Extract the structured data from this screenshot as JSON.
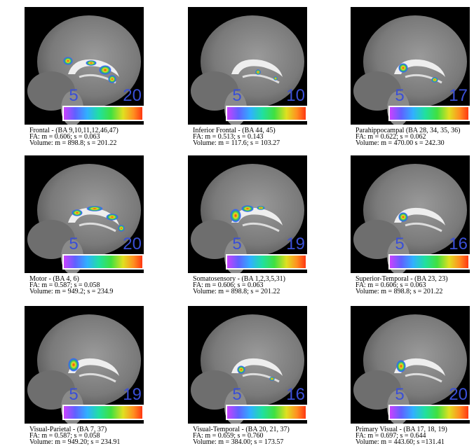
{
  "panels": [
    {
      "min_label": "5",
      "max_label": "20",
      "caption": [
        "Frontal - (BA 9,10,11,12,46,47)",
        "FA: m = 0.606; s = 0.063",
        "Volume: m = 898.8; s = 201.22"
      ]
    },
    {
      "min_label": "5",
      "max_label": "10",
      "caption": [
        "Inferior Frontal - (BA 44, 45)",
        "FA: m = 0.513; s = 0.143",
        "Volume: m = 117.6; s = 103.27"
      ]
    },
    {
      "min_label": "5",
      "max_label": "17",
      "caption": [
        "Parahippocampal (BA 28, 34, 35, 36)",
        "FA: m = 0.622; s = 0.062",
        "Volume: m = 470.00 s = 242.30"
      ]
    },
    {
      "min_label": "5",
      "max_label": "20",
      "caption": [
        "Motor - (BA 4, 6)",
        "FA: m = 0.587; s = 0.058",
        "Volume: m = 949.2; s = 234.9"
      ]
    },
    {
      "min_label": "5",
      "max_label": "19",
      "caption": [
        "Somatosensory - (BA 1,2,3,5,31)",
        "FA: m = 0.606; s = 0.063",
        "Volume: m = 898.8; s = 201.22"
      ]
    },
    {
      "min_label": "5",
      "max_label": "16",
      "caption": [
        "Superior-Temporal - (BA 23, 23)",
        "FA: m = 0.606; s = 0.063",
        "Volume: m = 898.8; s = 201.22"
      ]
    },
    {
      "min_label": "5",
      "max_label": "19",
      "caption": [
        "Visual-Parietal - (BA 7, 37)",
        "FA: m = 0.587; s = 0.058",
        "Volume: m = 949.20; s = 234.91"
      ]
    },
    {
      "min_label": "5",
      "max_label": "16",
      "caption": [
        "Visual-Temporal - (BA 20, 21, 37)",
        "FA: m = 0.659; s = 0.760",
        "Volume: m = 384.00; s = 173.57"
      ]
    },
    {
      "min_label": "5",
      "max_label": "20",
      "caption": [
        "Primary Visual - (BA 17, 18, 19)",
        "FA: m = 0.697; s = 0.644",
        "Volume: m = 443.60; s =131.41"
      ]
    }
  ]
}
